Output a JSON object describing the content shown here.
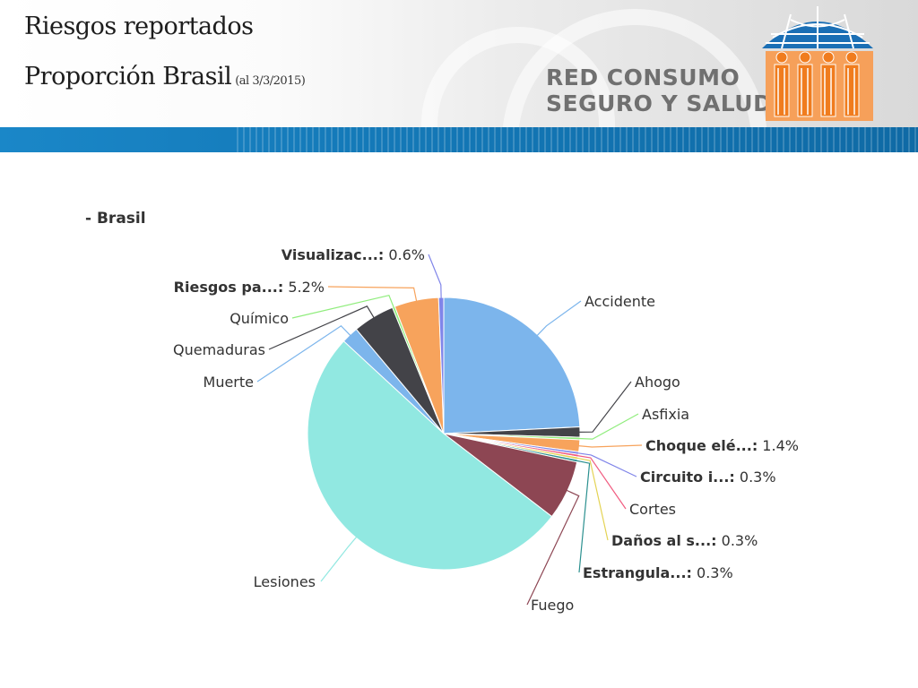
{
  "header": {
    "title_line1": "Riesgos reportados",
    "title_line2": "Proporción Brasil",
    "date_note": "(al 3/3/2015)",
    "brand_line1": "RED CONSUMO",
    "brand_line2": "SEGURO Y SALUD",
    "logo_colors": {
      "umbrella": "#1b6fb5",
      "figures": "#f07c1e"
    }
  },
  "chart_data": {
    "type": "pie",
    "title": "",
    "series_name": "Brasil",
    "legend_label": "- Brasil",
    "slices": [
      {
        "label": "Accidente",
        "display": "Accidente",
        "value": 24.0,
        "color": "#7cb5ec",
        "bold": false
      },
      {
        "label": "Ahogo",
        "display": "Ahogo",
        "value": 1.2,
        "color": "#434348",
        "bold": false
      },
      {
        "label": "Asfixia",
        "display": "Asfixia",
        "value": 0.3,
        "color": "#90ed7d",
        "bold": false
      },
      {
        "label": "Choque elé...",
        "display": "Choque elé...: 1.4%",
        "value": 1.4,
        "color": "#f7a35c",
        "bold": true
      },
      {
        "label": "Circuito i...",
        "display": "Circuito i...: 0.3%",
        "value": 0.3,
        "color": "#8085e9",
        "bold": true
      },
      {
        "label": "Cortes",
        "display": "Cortes",
        "value": 0.3,
        "color": "#f15c80",
        "bold": false
      },
      {
        "label": "Daños al s...",
        "display": "Daños al s...: 0.3%",
        "value": 0.3,
        "color": "#e4d354",
        "bold": true
      },
      {
        "label": "Estrangula...",
        "display": "Estrangula...: 0.3%",
        "value": 0.3,
        "color": "#2b908f",
        "bold": true
      },
      {
        "label": "Fuego",
        "display": "Fuego",
        "value": 7.0,
        "color": "#8d4653",
        "bold": false
      },
      {
        "label": "Lesiones",
        "display": "Lesiones",
        "value": 51.0,
        "color": "#91e8e1",
        "bold": false
      },
      {
        "label": "Muerte",
        "display": "Muerte",
        "value": 2.0,
        "color": "#7cb5ec",
        "bold": false
      },
      {
        "label": "Quemaduras",
        "display": "Quemaduras",
        "value": 4.9,
        "color": "#434348",
        "bold": false
      },
      {
        "label": "Químico",
        "display": "Químico",
        "value": 0.3,
        "color": "#90ed7d",
        "bold": false
      },
      {
        "label": "Riesgos pa...",
        "display": "Riesgos pa...: 5.2%",
        "value": 5.2,
        "color": "#f7a35c",
        "bold": true
      },
      {
        "label": "Visualizac...",
        "display": "Visualizac...: 0.6%",
        "value": 0.6,
        "color": "#8085e9",
        "bold": true
      }
    ]
  }
}
